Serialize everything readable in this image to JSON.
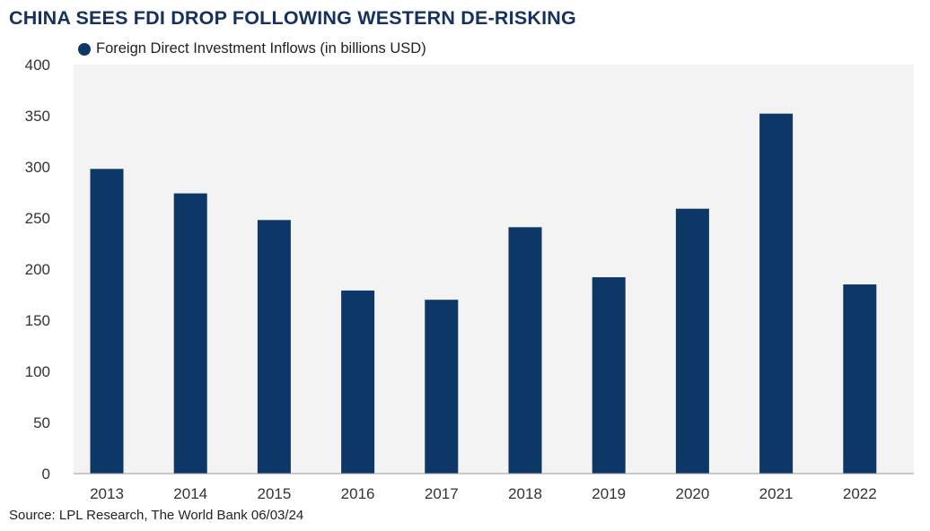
{
  "title": "CHINA SEES FDI DROP FOLLOWING WESTERN DE-RISKING",
  "source": "Source: LPL Research, The World Bank 06/03/24",
  "colors": {
    "bar": "#0c3766",
    "plot_background": "#f3f3f3",
    "title": "#16315f"
  },
  "chart_data": {
    "type": "bar",
    "title": "CHINA SEES FDI DROP FOLLOWING WESTERN DE-RISKING",
    "xlabel": "",
    "ylabel": "",
    "categories": [
      "2013",
      "2014",
      "2015",
      "2016",
      "2017",
      "2018",
      "2019",
      "2020",
      "2021",
      "2022"
    ],
    "series": [
      {
        "name": "Foreign Direct Investment Inflows (in billions USD)",
        "values": [
          298,
          274,
          248,
          179,
          170,
          241,
          192,
          259,
          352,
          185
        ]
      }
    ],
    "ylim": [
      0,
      400
    ],
    "yticks": [
      0,
      50,
      100,
      150,
      200,
      250,
      300,
      350,
      400
    ],
    "grid": false,
    "legend_position": "top-left"
  }
}
